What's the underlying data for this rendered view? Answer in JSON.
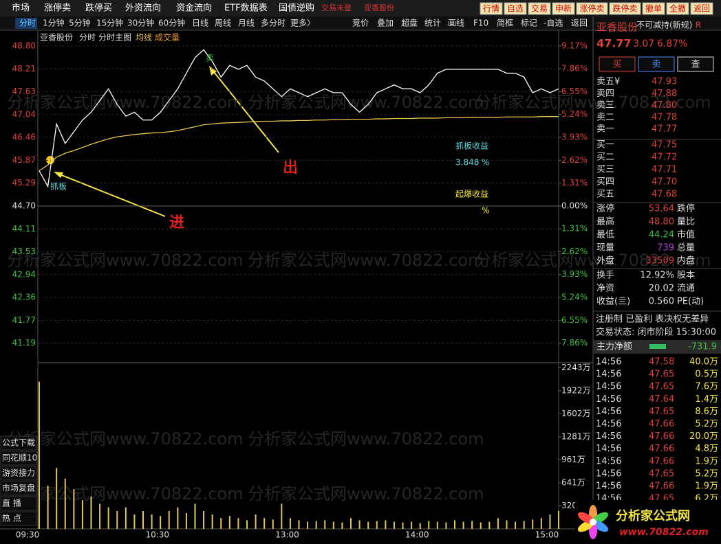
{
  "menu": {
    "items": [
      "市场",
      "涨停卖",
      "跌停买",
      "外资流向",
      "资金流向",
      "ETF数据表",
      "国债逆购"
    ],
    "status": "交易未登",
    "stock": "亚香股份",
    "buttons": [
      "行情",
      "自选",
      "交易",
      "申新",
      "涨停卖",
      "跌停卖",
      "撤单",
      "全撤",
      "返回"
    ]
  },
  "toolbar": {
    "periods": [
      "分时",
      "1分钟",
      "5分钟",
      "15分钟",
      "30分钟",
      "60分钟",
      "日线",
      "周线",
      "月线",
      "多分时",
      "更多〉"
    ],
    "tools": [
      "竞价",
      "叠加",
      "超盘",
      "统计",
      "画线",
      "F10",
      "简框",
      "标记",
      "-自选",
      "返回"
    ]
  },
  "chart_data": {
    "type": "line",
    "title": "亚香股份",
    "subtitle": "分时主图",
    "x_labels": [
      "09:30",
      "10:30",
      "13:00",
      "14:00",
      "15:00"
    ],
    "series": [
      {
        "name": "分时",
        "color": "#ffffff",
        "values": [
          45.6,
          45.2,
          46.8,
          46.3,
          46.6,
          46.9,
          47.1,
          47.4,
          47.7,
          47.3,
          47.0,
          47.1,
          46.9,
          46.9,
          47.1,
          47.4,
          47.7,
          48.1,
          48.5,
          48.7,
          48.4,
          48.0,
          48.3,
          48.2,
          48.3,
          48.0,
          47.9,
          47.7,
          47.5,
          47.7,
          47.6,
          47.5,
          47.6,
          47.7,
          47.6,
          47.6,
          47.3,
          47.1,
          47.3,
          47.6,
          47.7,
          47.8,
          47.7,
          47.7,
          47.6,
          47.8,
          48.1,
          48.2,
          48.2,
          48.2,
          48.2,
          48.2,
          48.2,
          48.2,
          48.1,
          48.1,
          48.0,
          47.6,
          47.7,
          47.6,
          47.7
        ]
      },
      {
        "name": "均线",
        "color": "#e8c84a",
        "values": [
          45.6,
          45.75,
          45.95,
          46.05,
          46.12,
          46.2,
          46.28,
          46.35,
          46.42,
          46.47,
          46.5,
          46.53,
          46.55,
          46.57,
          46.58,
          46.6,
          46.63,
          46.68,
          46.73,
          46.78,
          46.8,
          46.82,
          46.83,
          46.84,
          46.85,
          46.86,
          46.87,
          46.87,
          46.88,
          46.88,
          46.89,
          46.89,
          46.9,
          46.9,
          46.91,
          46.91,
          46.92,
          46.92,
          46.92,
          46.93,
          46.93,
          46.94,
          46.94,
          46.94,
          46.95,
          46.95,
          46.95,
          46.96,
          46.96,
          46.96,
          46.97,
          46.97,
          46.97,
          46.97,
          46.98,
          46.98,
          46.98,
          46.98,
          46.99,
          46.99,
          46.99
        ]
      }
    ],
    "ylim": [
      40.74,
      49.13
    ],
    "yticks": [
      {
        "value": 48.8,
        "label": "48.80"
      },
      {
        "value": 48.21,
        "label": "48.21"
      },
      {
        "value": 47.63,
        "label": "47.63"
      },
      {
        "value": 47.04,
        "label": "47.04"
      },
      {
        "value": 46.46,
        "label": "46.46"
      },
      {
        "value": 45.87,
        "label": "45.87"
      },
      {
        "value": 45.29,
        "label": "45.29"
      },
      {
        "value": 44.7,
        "label": "44.70"
      },
      {
        "value": 44.11,
        "label": "44.11"
      },
      {
        "value": 43.53,
        "label": "43.53"
      },
      {
        "value": 42.94,
        "label": "42.94"
      },
      {
        "value": 42.36,
        "label": "42.36"
      },
      {
        "value": 41.77,
        "label": "41.77"
      },
      {
        "value": 41.19,
        "label": "41.19"
      }
    ],
    "y2lim": [
      -8.86,
      9.91
    ],
    "y2ticks": [
      {
        "value": 9.17,
        "label": "9.17%"
      },
      {
        "value": 7.86,
        "label": "7.86%"
      },
      {
        "value": 6.55,
        "label": "6.55%"
      },
      {
        "value": 5.24,
        "label": "5.24%"
      },
      {
        "value": 3.93,
        "label": "3.93%"
      },
      {
        "value": 2.62,
        "label": "2.62%"
      },
      {
        "value": 1.31,
        "label": "1.31%"
      },
      {
        "value": 0,
        "label": "0.00%"
      },
      {
        "value": -1.31,
        "label": "1.31%"
      },
      {
        "value": -2.62,
        "label": "2.62%"
      },
      {
        "value": -3.93,
        "label": "3.93%"
      },
      {
        "value": -5.24,
        "label": "5.24%"
      },
      {
        "value": -6.55,
        "label": "6.55%"
      },
      {
        "value": -7.86,
        "label": "7.86%"
      }
    ],
    "volume": {
      "name": "成交量",
      "color": "#e8c84a",
      "values": [
        2050,
        600,
        850,
        700,
        550,
        400,
        450,
        350,
        300,
        250,
        300,
        200,
        250,
        200,
        180,
        250,
        300,
        220,
        350,
        250,
        200,
        150,
        180,
        150,
        120,
        200,
        150,
        130,
        350,
        150,
        120,
        100,
        110,
        120,
        100,
        90,
        150,
        120,
        100,
        110,
        120,
        100,
        90,
        100,
        80,
        110,
        100,
        90,
        120,
        100,
        110,
        90,
        100,
        150,
        120,
        100,
        110,
        130,
        150,
        200,
        250
      ],
      "ylim": [
        0,
        2314
      ],
      "yticks": [
        {
          "value": 2243,
          "label": "2243万"
        },
        {
          "value": 1922,
          "label": "1922万"
        },
        {
          "value": 1602,
          "label": "1602万"
        },
        {
          "value": 1281,
          "label": "1281万"
        },
        {
          "value": 961,
          "label": "961万"
        },
        {
          "value": 641,
          "label": "641万"
        },
        {
          "value": 320,
          "label": "320万"
        }
      ]
    },
    "annotations": {
      "board_gain_label": "抓板收益",
      "board_gain": 3.848,
      "board_gain_unit": "%",
      "ignite_gain_label": "起爆收益",
      "ignite_gain_unit": "%",
      "buy_tag": "抓板",
      "sell_tag": "卖",
      "enter": "进",
      "exit": "出"
    }
  },
  "side_menu": [
    "公式下载",
    "同花顺10",
    "游资接力",
    "市场复盘",
    "直 播",
    "热 点"
  ],
  "watermark": "分析家公式网www.70822.com",
  "quote": {
    "name": "亚香股份",
    "tag": "不可减持(新规)",
    "flag": "R",
    "price": "47.77",
    "change": "3.07",
    "pct": "6.87%",
    "actions": [
      "买",
      "卖",
      "查"
    ],
    "asks": [
      [
        "卖五¥",
        "47.93"
      ],
      [
        "卖四",
        "47.88"
      ],
      [
        "卖三",
        "47.80"
      ],
      [
        "卖二",
        "47.78"
      ],
      [
        "卖一",
        "47.77"
      ]
    ],
    "bids": [
      [
        "买一",
        "47.75"
      ],
      [
        "买二",
        "47.72"
      ],
      [
        "买三",
        "47.71"
      ],
      [
        "买四",
        "47.70"
      ],
      [
        "买五",
        "47.68"
      ]
    ],
    "stats": [
      [
        "涨停",
        "53.64",
        "跌停"
      ],
      [
        "最高",
        "48.80",
        "量比"
      ],
      [
        "最低",
        "44.24",
        "市值"
      ],
      [
        "现量",
        "739",
        "总量"
      ],
      [
        "外盘",
        "33509",
        "内盘"
      ],
      [
        "换手",
        "12.92%",
        "股本"
      ],
      [
        "净资",
        "20.02",
        "流通"
      ],
      [
        "收益(亖)",
        "0.560",
        "PE(动)"
      ]
    ],
    "info": [
      "注册制 已盈利 表决权无差异",
      "交易状态: 闭市阶段 15:30:00"
    ],
    "main_flow_label": "主力净额",
    "main_flow": "-731.9",
    "trades": [
      [
        "14:56",
        "47.58",
        "40.0万"
      ],
      [
        "14:56",
        "47.65",
        "0.5万"
      ],
      [
        "14:56",
        "47.65",
        "7.6万"
      ],
      [
        "14:56",
        "47.64",
        "1.4万"
      ],
      [
        "14:56",
        "47.65",
        "8.6万"
      ],
      [
        "14:56",
        "47.66",
        "5.2万"
      ],
      [
        "14:56",
        "47.66",
        "20.0万"
      ],
      [
        "14:56",
        "47.66",
        "4.8万"
      ],
      [
        "14:56",
        "47.66",
        "1.9万"
      ],
      [
        "14:56",
        "47.65",
        "5.2万"
      ],
      [
        "14:56",
        "47.66",
        "1.9万"
      ],
      [
        "14:56",
        "47.65",
        "6.2万"
      ]
    ]
  },
  "logo": {
    "name": "分析家公式网",
    "url": "www.70822.com"
  }
}
